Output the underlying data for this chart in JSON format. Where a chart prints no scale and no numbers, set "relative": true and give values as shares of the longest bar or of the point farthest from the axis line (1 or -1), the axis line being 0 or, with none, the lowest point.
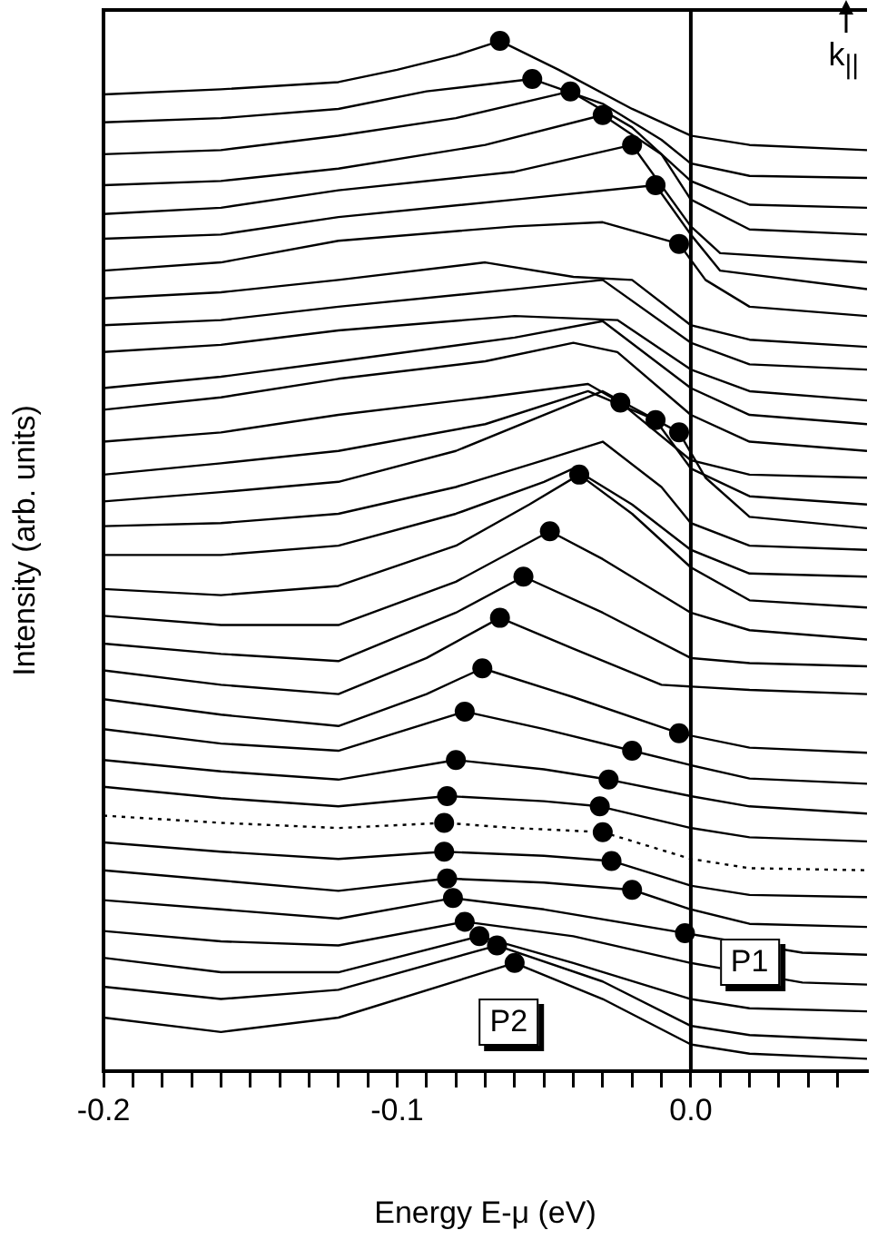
{
  "chart_data": {
    "type": "line",
    "relative": true,
    "xlabel": "Energy E-μ (eV)",
    "ylabel": "Intensity (arb. units)",
    "xlim": [
      -0.2,
      0.06
    ],
    "xticks": [
      -0.2,
      {
        "value": -0.19,
        "label": null
      },
      {
        "value": -0.18,
        "label": null
      },
      {
        "value": -0.17,
        "label": null
      },
      {
        "value": -0.16,
        "label": null
      },
      {
        "value": -0.15,
        "label": null
      },
      {
        "value": -0.14,
        "label": null
      },
      {
        "value": -0.13,
        "label": null
      },
      {
        "value": -0.12,
        "label": null
      },
      {
        "value": -0.11,
        "label": null
      },
      -0.1,
      {
        "value": -0.09,
        "label": null
      },
      {
        "value": -0.08,
        "label": null
      },
      {
        "value": -0.07,
        "label": null
      },
      {
        "value": -0.06,
        "label": null
      },
      {
        "value": -0.05,
        "label": null
      },
      {
        "value": -0.04,
        "label": null
      },
      {
        "value": -0.03,
        "label": null
      },
      {
        "value": -0.02,
        "label": null
      },
      {
        "value": -0.01,
        "label": null
      },
      {
        "value": 0,
        "label": "0.0"
      },
      {
        "value": 0.01,
        "label": null
      },
      {
        "value": 0.02,
        "label": null
      },
      {
        "value": 0.03,
        "label": null
      },
      {
        "value": 0.04,
        "label": null
      },
      {
        "value": 0.05,
        "label": null
      }
    ],
    "legend": false,
    "marker": "none",
    "line_style": "solid",
    "ref_lines": [
      {
        "axis": "x",
        "value": 0,
        "color": "#000000"
      }
    ],
    "annotations": [
      "k$_{||}$",
      {
        "text": "P1",
        "x": 0.02,
        "y": 0.105
      },
      {
        "text": "P2",
        "x": -0.062,
        "y": 0.047
      }
    ],
    "series": [
      {
        "color": "#000000",
        "x": [
          -0.2,
          -0.16,
          -0.12,
          -0.1,
          -0.08,
          -0.065,
          -0.045,
          -0.02,
          0,
          0.02,
          0.06
        ],
        "values": [
          0.948,
          0.953,
          0.96,
          0.972,
          0.986,
          1.0,
          0.972,
          0.934,
          0.908,
          0.899,
          0.894
        ]
      },
      {
        "color": "#000000",
        "x": [
          -0.2,
          -0.16,
          -0.12,
          -0.09,
          -0.054,
          -0.03,
          -0.01,
          0,
          0.02,
          0.06
        ],
        "values": [
          0.921,
          0.925,
          0.934,
          0.951,
          0.963,
          0.939,
          0.904,
          0.881,
          0.869,
          0.867
        ]
      },
      {
        "color": "#000000",
        "x": [
          -0.2,
          -0.16,
          -0.12,
          -0.08,
          -0.041,
          -0.02,
          0,
          0.02,
          0.06
        ],
        "values": [
          0.89,
          0.894,
          0.908,
          0.925,
          0.951,
          0.916,
          0.864,
          0.841,
          0.838
        ]
      },
      {
        "color": "#000000",
        "x": [
          -0.2,
          -0.16,
          -0.12,
          -0.07,
          -0.03,
          -0.01,
          0,
          0.02,
          0.06
        ],
        "values": [
          0.86,
          0.864,
          0.876,
          0.899,
          0.928,
          0.89,
          0.846,
          0.817,
          0.812
        ]
      },
      {
        "color": "#000000",
        "x": [
          -0.2,
          -0.16,
          -0.12,
          -0.06,
          -0.02,
          0,
          0.01,
          0.06
        ],
        "values": [
          0.832,
          0.838,
          0.855,
          0.873,
          0.899,
          0.82,
          0.794,
          0.785
        ]
      },
      {
        "color": "#000000",
        "x": [
          -0.2,
          -0.16,
          -0.12,
          -0.06,
          -0.012,
          0,
          0.01,
          0.06
        ],
        "values": [
          0.808,
          0.812,
          0.829,
          0.846,
          0.86,
          0.812,
          0.777,
          0.759
        ]
      },
      {
        "color": "#000000",
        "x": [
          -0.2,
          -0.16,
          -0.12,
          -0.06,
          -0.03,
          -0.004,
          0.005,
          0.02,
          0.06
        ],
        "values": [
          0.777,
          0.785,
          0.806,
          0.82,
          0.824,
          0.803,
          0.768,
          0.742,
          0.733
        ]
      },
      {
        "color": "#000000",
        "x": [
          -0.2,
          -0.16,
          -0.12,
          -0.07,
          -0.04,
          -0.02,
          0,
          0.02,
          0.06
        ],
        "values": [
          0.75,
          0.756,
          0.768,
          0.785,
          0.771,
          0.768,
          0.724,
          0.71,
          0.703
        ]
      },
      {
        "color": "#000000",
        "x": [
          -0.2,
          -0.16,
          -0.12,
          -0.06,
          -0.03,
          0,
          0.02,
          0.06
        ],
        "values": [
          0.724,
          0.729,
          0.742,
          0.759,
          0.768,
          0.707,
          0.686,
          0.681
        ]
      },
      {
        "color": "#000000",
        "x": [
          -0.2,
          -0.16,
          -0.12,
          -0.06,
          -0.025,
          0,
          0.02,
          0.06
        ],
        "values": [
          0.698,
          0.705,
          0.719,
          0.733,
          0.729,
          0.681,
          0.66,
          0.651
        ]
      },
      {
        "color": "#000000",
        "x": [
          -0.2,
          -0.16,
          -0.12,
          -0.06,
          -0.03,
          0,
          0.02,
          0.06
        ],
        "values": [
          0.663,
          0.674,
          0.689,
          0.712,
          0.728,
          0.663,
          0.637,
          0.628
        ]
      },
      {
        "color": "#000000",
        "x": [
          -0.2,
          -0.16,
          -0.12,
          -0.07,
          -0.04,
          -0.025,
          0,
          0.02,
          0.06
        ],
        "values": [
          0.642,
          0.654,
          0.672,
          0.689,
          0.707,
          0.698,
          0.637,
          0.611,
          0.602
        ]
      },
      {
        "color": "#000000",
        "x": [
          -0.2,
          -0.16,
          -0.12,
          -0.07,
          -0.035,
          -0.024,
          0,
          0.02,
          0.06
        ],
        "values": [
          0.611,
          0.62,
          0.637,
          0.654,
          0.667,
          0.649,
          0.593,
          0.579,
          0.576
        ]
      },
      {
        "color": "#000000",
        "x": [
          -0.2,
          -0.16,
          -0.12,
          -0.07,
          -0.035,
          -0.012,
          0,
          0.02,
          0.06
        ],
        "values": [
          0.579,
          0.59,
          0.602,
          0.628,
          0.66,
          0.632,
          0.585,
          0.558,
          0.55
        ]
      },
      {
        "color": "#000000",
        "x": [
          -0.2,
          -0.16,
          -0.12,
          -0.08,
          -0.05,
          -0.03,
          -0.004,
          0.005,
          0.02,
          0.06
        ],
        "values": [
          0.553,
          0.562,
          0.572,
          0.602,
          0.637,
          0.66,
          0.62,
          0.576,
          0.538,
          0.527
        ]
      },
      {
        "color": "#000000",
        "x": [
          -0.2,
          -0.16,
          -0.12,
          -0.08,
          -0.05,
          -0.03,
          -0.01,
          0,
          0.02,
          0.06
        ],
        "values": [
          0.529,
          0.532,
          0.541,
          0.567,
          0.593,
          0.611,
          0.567,
          0.532,
          0.51,
          0.506
        ]
      },
      {
        "color": "#000000",
        "x": [
          -0.2,
          -0.16,
          -0.12,
          -0.08,
          -0.05,
          -0.04,
          -0.02,
          0,
          0.02,
          0.06
        ],
        "values": [
          0.501,
          0.501,
          0.51,
          0.541,
          0.572,
          0.585,
          0.55,
          0.506,
          0.483,
          0.48
        ]
      },
      {
        "color": "#000000",
        "x": [
          -0.2,
          -0.16,
          -0.12,
          -0.08,
          -0.055,
          -0.038,
          -0.02,
          0,
          0.02,
          0.06
        ],
        "values": [
          0.468,
          0.462,
          0.471,
          0.51,
          0.55,
          0.579,
          0.541,
          0.489,
          0.457,
          0.45
        ]
      },
      {
        "color": "#000000",
        "x": [
          -0.2,
          -0.16,
          -0.12,
          -0.08,
          -0.048,
          -0.03,
          0,
          0.02,
          0.06
        ],
        "values": [
          0.442,
          0.433,
          0.433,
          0.475,
          0.524,
          0.497,
          0.445,
          0.428,
          0.419
        ]
      },
      {
        "color": "#000000",
        "x": [
          -0.2,
          -0.16,
          -0.12,
          -0.08,
          -0.057,
          -0.03,
          0,
          0.02,
          0.06
        ],
        "values": [
          0.415,
          0.405,
          0.398,
          0.445,
          0.48,
          0.445,
          0.401,
          0.396,
          0.393
        ]
      },
      {
        "color": "#000000",
        "x": [
          -0.2,
          -0.16,
          -0.12,
          -0.09,
          -0.065,
          -0.04,
          -0.01,
          0.02,
          0.06
        ],
        "values": [
          0.389,
          0.375,
          0.366,
          0.401,
          0.44,
          0.41,
          0.375,
          0.37,
          0.366
        ]
      },
      {
        "color": "#000000",
        "x": [
          -0.2,
          -0.16,
          -0.12,
          -0.09,
          -0.071,
          -0.04,
          -0.004,
          0.02,
          0.06
        ],
        "values": [
          0.361,
          0.346,
          0.335,
          0.366,
          0.391,
          0.363,
          0.328,
          0.314,
          0.309
        ]
      },
      {
        "color": "#000000",
        "x": [
          -0.2,
          -0.16,
          -0.12,
          -0.077,
          -0.05,
          -0.02,
          0,
          0.02,
          0.06
        ],
        "values": [
          0.332,
          0.318,
          0.311,
          0.349,
          0.332,
          0.311,
          0.297,
          0.284,
          0.279
        ]
      },
      {
        "color": "#000000",
        "x": [
          -0.2,
          -0.16,
          -0.12,
          -0.08,
          -0.05,
          -0.028,
          0,
          0.02,
          0.06
        ],
        "values": [
          0.302,
          0.291,
          0.283,
          0.302,
          0.293,
          0.283,
          0.267,
          0.257,
          0.25
        ]
      },
      {
        "color": "#000000",
        "x": [
          -0.2,
          -0.16,
          -0.12,
          -0.083,
          -0.05,
          -0.031,
          0,
          0.02,
          0.06
        ],
        "values": [
          0.276,
          0.265,
          0.257,
          0.267,
          0.262,
          0.257,
          0.236,
          0.227,
          0.223
        ]
      },
      {
        "color": "#000000",
        "line_style": "dotted",
        "x": [
          -0.2,
          -0.16,
          -0.12,
          -0.084,
          -0.06,
          -0.03,
          0,
          0.02,
          0.06
        ],
        "values": [
          0.248,
          0.241,
          0.236,
          0.241,
          0.236,
          0.232,
          0.206,
          0.197,
          0.195
        ]
      },
      {
        "color": "#000000",
        "x": [
          -0.2,
          -0.16,
          -0.12,
          -0.084,
          -0.05,
          -0.027,
          0,
          0.02,
          0.06
        ],
        "values": [
          0.222,
          0.213,
          0.206,
          0.213,
          0.209,
          0.204,
          0.18,
          0.171,
          0.169
        ]
      },
      {
        "color": "#000000",
        "x": [
          -0.2,
          -0.16,
          -0.12,
          -0.083,
          -0.05,
          -0.02,
          0,
          0.02,
          0.06
        ],
        "values": [
          0.195,
          0.185,
          0.175,
          0.187,
          0.183,
          0.176,
          0.157,
          0.143,
          0.14
        ]
      },
      {
        "color": "#000000",
        "x": [
          -0.2,
          -0.16,
          -0.12,
          -0.081,
          -0.05,
          -0.002,
          0.038,
          0.06
        ],
        "values": [
          0.166,
          0.157,
          0.148,
          0.168,
          0.157,
          0.134,
          0.115,
          0.113
        ]
      },
      {
        "color": "#000000",
        "x": [
          -0.2,
          -0.16,
          -0.12,
          -0.077,
          -0.04,
          0,
          0.038,
          0.06
        ],
        "values": [
          0.136,
          0.126,
          0.122,
          0.145,
          0.131,
          0.105,
          0.086,
          0.084
        ]
      },
      {
        "color": "#000000",
        "x": [
          -0.2,
          -0.16,
          -0.12,
          -0.072,
          -0.04,
          0,
          0.02,
          0.06
        ],
        "values": [
          0.11,
          0.096,
          0.096,
          0.131,
          0.105,
          0.07,
          0.061,
          0.058
        ]
      },
      {
        "color": "#000000",
        "x": [
          -0.2,
          -0.16,
          -0.12,
          -0.066,
          -0.03,
          0,
          0.02,
          0.06
        ],
        "values": [
          0.082,
          0.07,
          0.079,
          0.122,
          0.087,
          0.044,
          0.035,
          0.03
        ]
      },
      {
        "color": "#000000",
        "x": [
          -0.2,
          -0.16,
          -0.12,
          -0.06,
          -0.03,
          0,
          0.02,
          0.06
        ],
        "values": [
          0.052,
          0.038,
          0.052,
          0.105,
          0.07,
          0.026,
          0.017,
          0.012
        ]
      },
      {
        "type": "scatter",
        "marker": "circle",
        "color": "#000000",
        "x": [
          -0.065,
          -0.054,
          -0.041,
          -0.03,
          -0.02,
          -0.012,
          -0.004,
          -0.024,
          -0.012,
          -0.004,
          -0.038,
          -0.048,
          -0.057,
          -0.065,
          -0.071,
          -0.077,
          -0.08,
          -0.083,
          -0.084,
          -0.084,
          -0.083,
          -0.081,
          -0.077,
          -0.072,
          -0.066,
          -0.06,
          -0.004,
          -0.02,
          -0.028,
          -0.031,
          -0.03,
          -0.027,
          -0.02,
          -0.002
        ],
        "values": [
          1.0,
          0.963,
          0.951,
          0.928,
          0.899,
          0.86,
          0.803,
          0.649,
          0.632,
          0.62,
          0.579,
          0.524,
          0.48,
          0.44,
          0.391,
          0.349,
          0.302,
          0.267,
          0.241,
          0.213,
          0.187,
          0.168,
          0.145,
          0.131,
          0.122,
          0.105,
          0.328,
          0.311,
          0.283,
          0.257,
          0.232,
          0.204,
          0.176,
          0.134
        ]
      }
    ]
  }
}
